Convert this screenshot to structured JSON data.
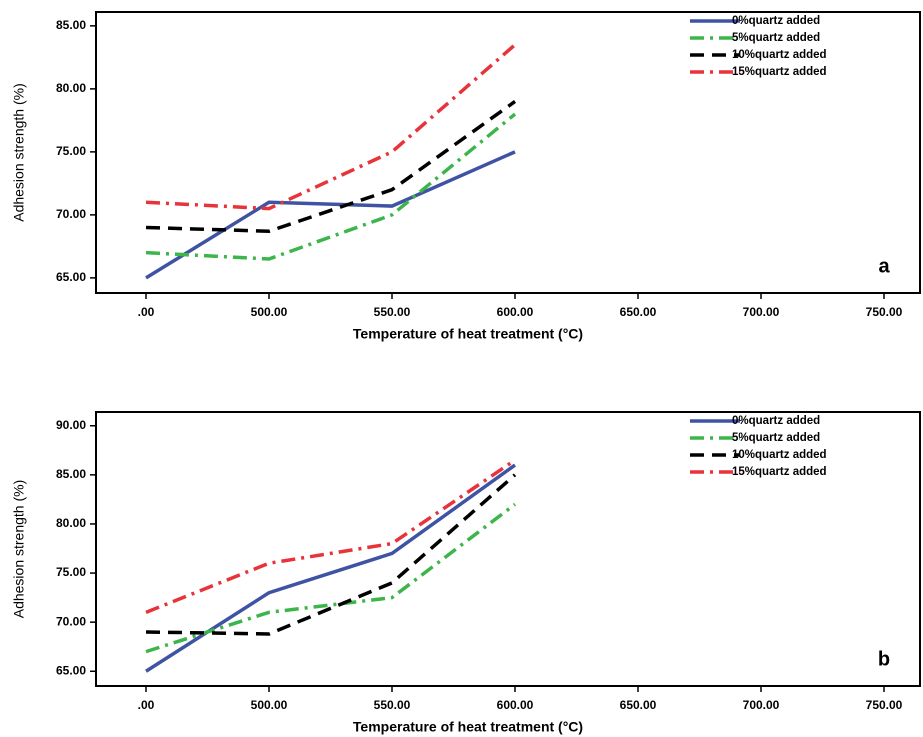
{
  "chart_data": [
    {
      "type": "line",
      "annotation": "a",
      "x_label": "Temperature of heat treatment (°C)",
      "y_label": "Adhesion strength (%)",
      "categories": [
        ".00",
        "500.00",
        "550.00",
        "600.00",
        "650.00",
        "700.00",
        "750.00"
      ],
      "ylim": [
        63.8,
        86.1
      ],
      "yticks": [
        {
          "value": 65,
          "label": "65.00"
        },
        {
          "value": 70,
          "label": "70.00"
        },
        {
          "value": 75,
          "label": "75.00"
        },
        {
          "value": 80,
          "label": "80.00"
        },
        {
          "value": 85,
          "label": "85.00"
        }
      ],
      "legend": "upper right",
      "series": [
        {
          "name": "0%quartz added",
          "color": "#3f53a3",
          "style": "solid",
          "values": [
            65,
            71,
            70.7,
            75,
            null,
            null,
            null
          ]
        },
        {
          "name": "5%quartz added",
          "color": "#3cb54a",
          "style": "dashdot",
          "values": [
            67,
            66.5,
            70,
            78,
            null,
            null,
            null
          ]
        },
        {
          "name": "10%quartz added",
          "color": "#000000",
          "style": "dashed",
          "values": [
            69,
            68.7,
            72,
            79,
            null,
            null,
            null
          ]
        },
        {
          "name": "15%quartz added",
          "color": "#e8333b",
          "style": "dashdot",
          "values": [
            71,
            70.5,
            75,
            83.5,
            null,
            null,
            null
          ]
        }
      ]
    },
    {
      "type": "line",
      "annotation": "b",
      "x_label": "Temperature of heat treatment (°C)",
      "y_label": "Adhesion strength (%)",
      "categories": [
        ".00",
        "500.00",
        "550.00",
        "600.00",
        "650.00",
        "700.00",
        "750.00"
      ],
      "ylim": [
        63.5,
        91.4
      ],
      "yticks": [
        {
          "value": 65,
          "label": "65.00"
        },
        {
          "value": 70,
          "label": "70.00"
        },
        {
          "value": 75,
          "label": "75.00"
        },
        {
          "value": 80,
          "label": "80.00"
        },
        {
          "value": 85,
          "label": "85.00"
        },
        {
          "value": 90,
          "label": "90.00"
        }
      ],
      "legend": "upper right",
      "series": [
        {
          "name": "0%quartz added",
          "color": "#3f53a3",
          "style": "solid",
          "values": [
            65,
            73,
            77,
            86,
            null,
            null,
            null
          ]
        },
        {
          "name": "5%quartz added",
          "color": "#3cb54a",
          "style": "dashdot",
          "values": [
            67,
            71,
            72.5,
            82,
            null,
            null,
            null
          ]
        },
        {
          "name": "10%quartz added",
          "color": "#000000",
          "style": "dashed",
          "values": [
            69,
            68.8,
            74,
            85,
            null,
            null,
            null
          ]
        },
        {
          "name": "15%quartz added",
          "color": "#e8333b",
          "style": "dashdot",
          "values": [
            71,
            76,
            78,
            86.5,
            null,
            null,
            null
          ]
        }
      ]
    }
  ]
}
